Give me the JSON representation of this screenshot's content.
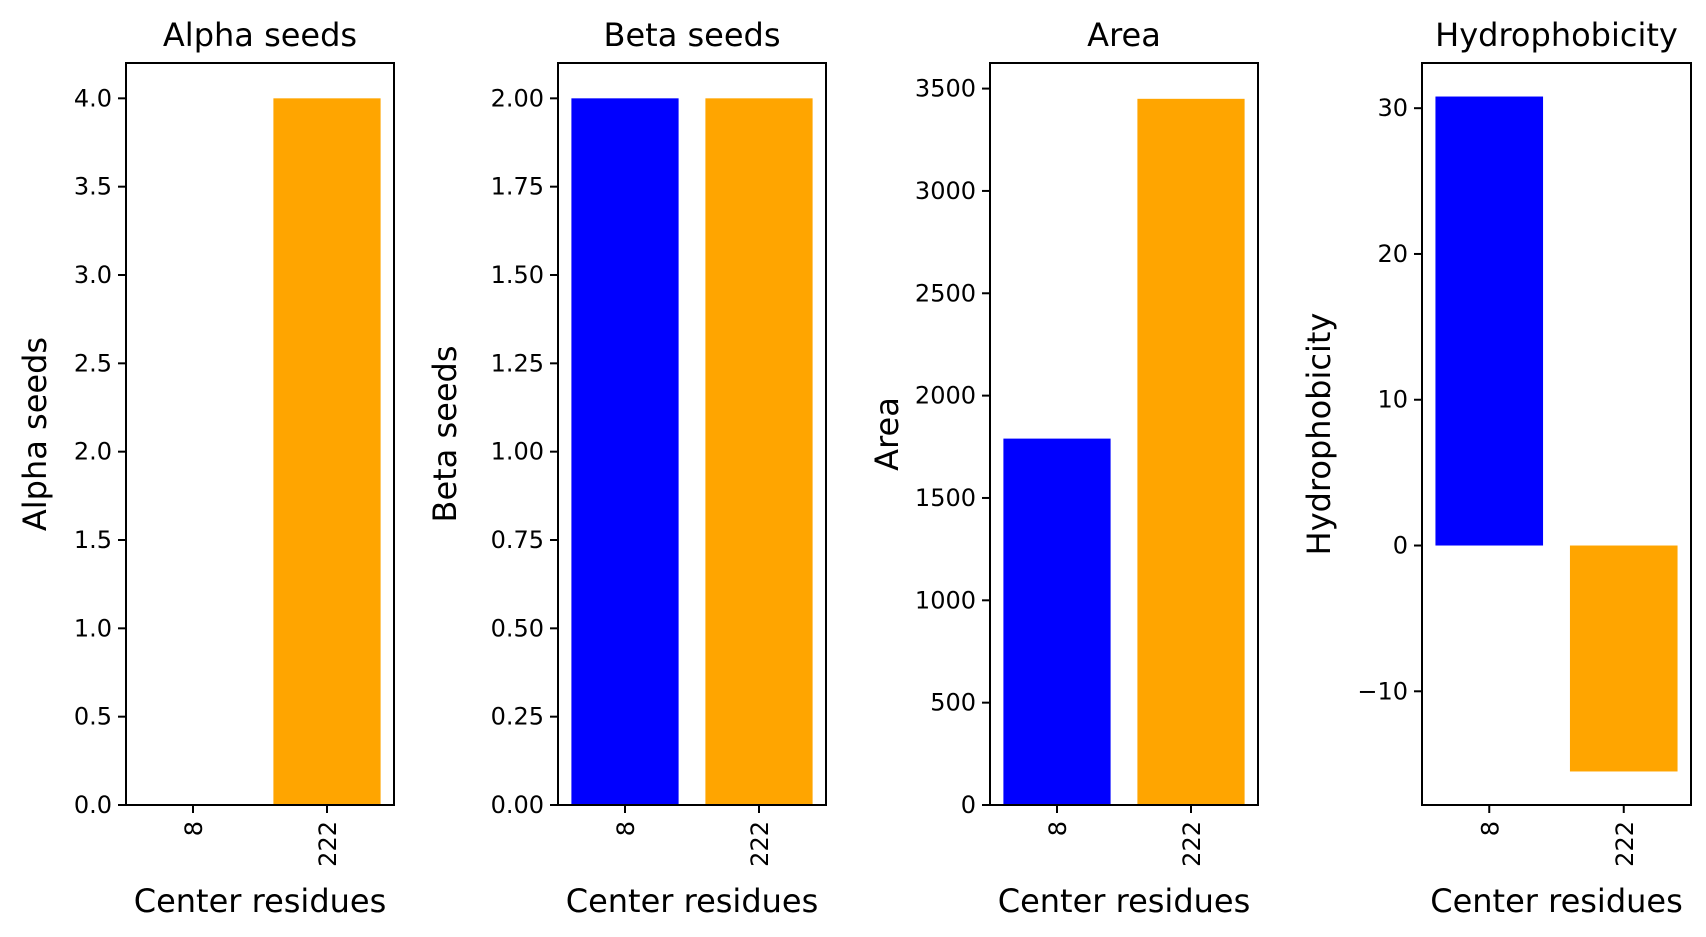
{
  "colors": {
    "series_a": "#0000ff",
    "series_b": "#ffa500"
  },
  "chart_data": [
    {
      "type": "bar",
      "title": "Alpha seeds",
      "xlabel": "Center residues",
      "ylabel": "Alpha seeds",
      "categories": [
        "8",
        "222"
      ],
      "values": [
        0,
        4
      ],
      "ylim": [
        0,
        4.2
      ],
      "yticks": [
        0,
        0.5,
        1,
        1.5,
        2,
        2.5,
        3,
        3.5,
        4
      ],
      "ytick_labels": [
        "0.0",
        "0.5",
        "1.0",
        "1.5",
        "2.0",
        "2.5",
        "3.0",
        "3.5",
        "4.0"
      ]
    },
    {
      "type": "bar",
      "title": "Beta seeds",
      "xlabel": "Center residues",
      "ylabel": "Beta seeds",
      "categories": [
        "8",
        "222"
      ],
      "values": [
        2,
        2
      ],
      "ylim": [
        0,
        2.1
      ],
      "yticks": [
        0,
        0.25,
        0.5,
        0.75,
        1,
        1.25,
        1.5,
        1.75,
        2
      ],
      "ytick_labels": [
        "0.00",
        "0.25",
        "0.50",
        "0.75",
        "1.00",
        "1.25",
        "1.50",
        "1.75",
        "2.00"
      ]
    },
    {
      "type": "bar",
      "title": "Area",
      "xlabel": "Center residues",
      "ylabel": "Area",
      "categories": [
        "8",
        "222"
      ],
      "values": [
        1790,
        3450
      ],
      "ylim": [
        0,
        3625
      ],
      "yticks": [
        0,
        500,
        1000,
        1500,
        2000,
        2500,
        3000,
        3500
      ],
      "ytick_labels": [
        "0",
        "500",
        "1000",
        "1500",
        "2000",
        "2500",
        "3000",
        "3500"
      ]
    },
    {
      "type": "bar",
      "title": "Hydrophobicity",
      "xlabel": "Center residues",
      "ylabel": "Hydrophobicity",
      "categories": [
        "8",
        "222"
      ],
      "values": [
        30.8,
        -15.5
      ],
      "ylim": [
        -17.8,
        33.1
      ],
      "yticks": [
        -10,
        0,
        10,
        20,
        30
      ],
      "ytick_labels": [
        "−10",
        "0",
        "10",
        "20",
        "30"
      ]
    }
  ]
}
